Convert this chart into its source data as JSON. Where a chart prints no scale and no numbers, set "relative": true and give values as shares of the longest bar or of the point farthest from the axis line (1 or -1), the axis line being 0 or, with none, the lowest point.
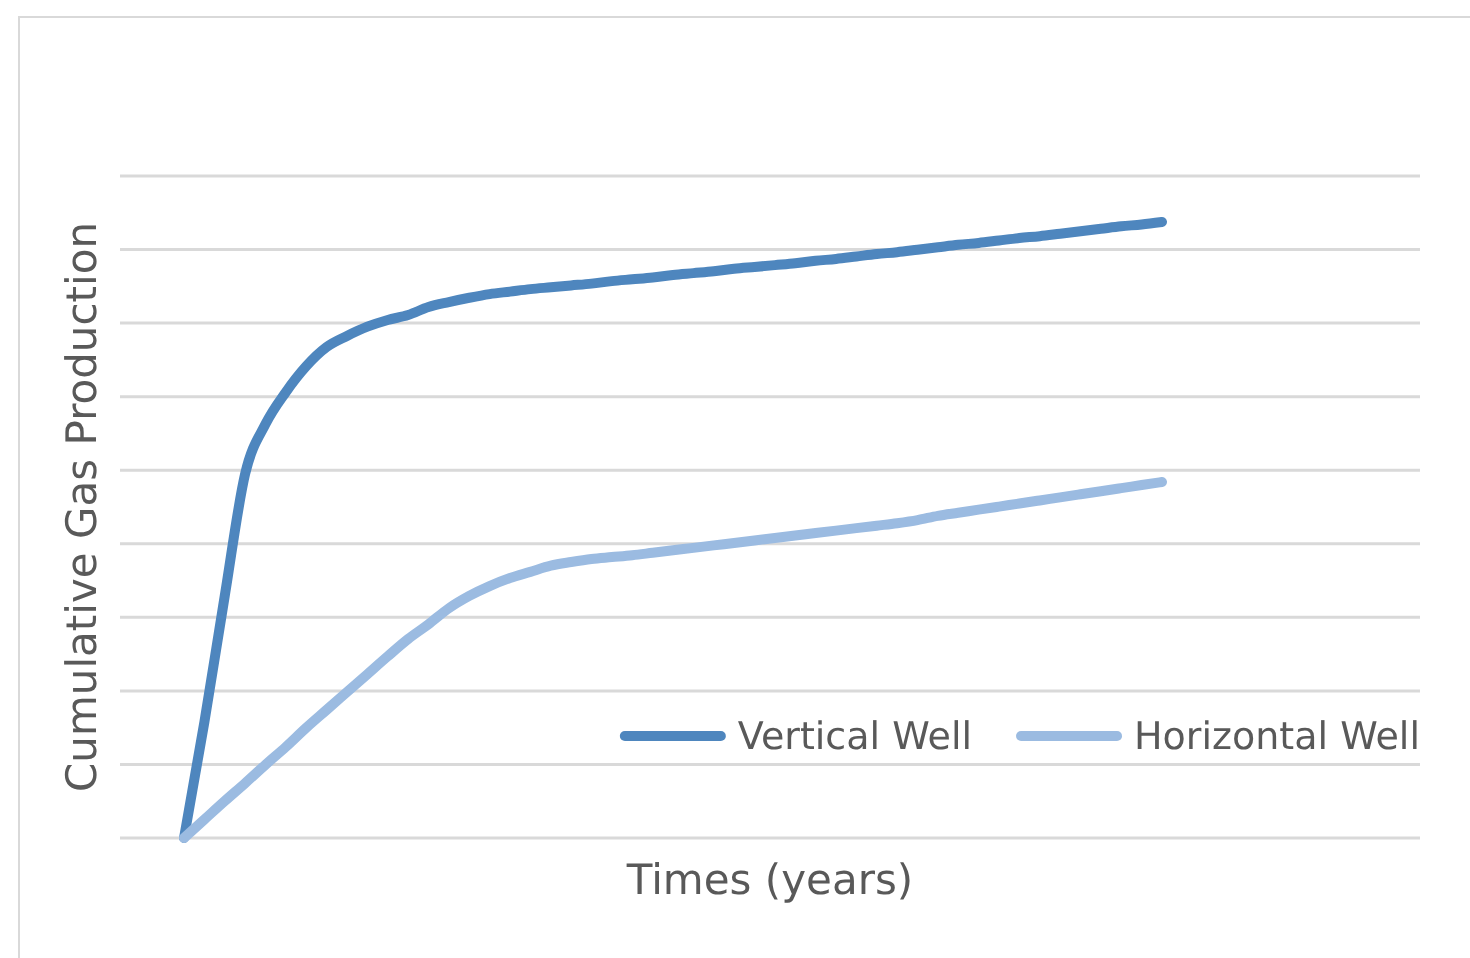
{
  "chart_data": {
    "type": "line",
    "xlabel": "Times (years)",
    "ylabel": "Cumulative Gas Production",
    "relative": true,
    "categories": [
      null,
      null,
      null,
      null,
      null,
      null,
      null,
      null,
      null,
      null,
      null,
      null,
      null,
      null,
      null,
      null,
      null,
      null,
      null,
      null,
      null,
      null,
      null,
      null,
      null,
      null,
      null,
      null,
      null,
      null,
      null,
      null,
      null,
      null,
      null,
      null,
      null,
      null,
      null,
      null,
      null,
      null,
      null,
      null,
      null,
      null,
      null,
      null,
      null
    ],
    "series": [
      {
        "name": "Vertical Well",
        "color": "#4e86be",
        "values": [
          0,
          0.188,
          0.393,
          0.591,
          0.672,
          0.724,
          0.766,
          0.797,
          0.815,
          0.83,
          0.841,
          0.849,
          0.862,
          0.87,
          0.877,
          0.883,
          0.887,
          0.891,
          0.894,
          0.897,
          0.9,
          0.904,
          0.907,
          0.91,
          0.914,
          0.917,
          0.92,
          0.924,
          0.927,
          0.93,
          0.933,
          0.937,
          0.94,
          0.944,
          0.948,
          0.951,
          0.955,
          0.959,
          0.963,
          0.966,
          0.97,
          0.974,
          0.977,
          0.981,
          0.985,
          0.989,
          0.993,
          0.996,
          1
        ]
      },
      {
        "name": "Horizontal Well",
        "color": "#9bbbe1",
        "values": [
          0,
          0.03,
          0.06,
          0.089,
          0.119,
          0.148,
          0.179,
          0.208,
          0.237,
          0.266,
          0.295,
          0.323,
          0.347,
          0.373,
          0.393,
          0.409,
          0.422,
          0.432,
          0.442,
          0.448,
          0.453,
          0.456,
          0.459,
          0.463,
          0.467,
          0.471,
          0.475,
          0.479,
          0.483,
          0.487,
          0.491,
          0.495,
          0.499,
          0.503,
          0.507,
          0.511,
          0.516,
          0.523,
          0.528,
          0.533,
          0.538,
          0.543,
          0.548,
          0.553,
          0.558,
          0.563,
          0.568,
          0.573,
          0.578
        ]
      }
    ],
    "grid": "y",
    "legend": "bottom right",
    "line_style": "solid"
  }
}
